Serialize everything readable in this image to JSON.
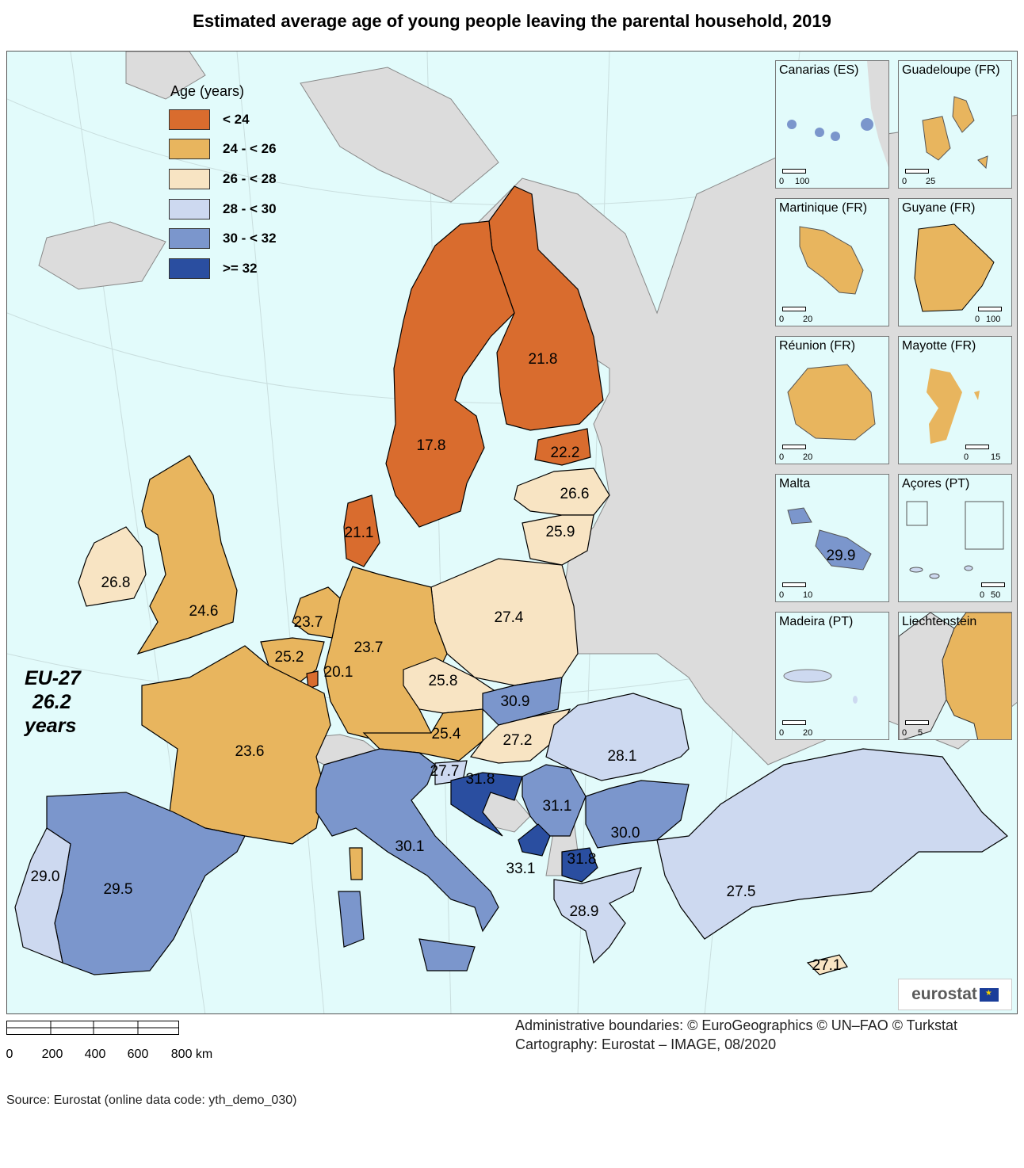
{
  "title": "Estimated average age of young people leaving the parental household, 2019",
  "legend": {
    "title": "Age (years)",
    "classes": [
      {
        "label": "< 24",
        "color": "#d96c2e"
      },
      {
        "label": "24 - < 26",
        "color": "#e8b55e"
      },
      {
        "label": "26 - < 28",
        "color": "#f8e4c3"
      },
      {
        "label": "28 - < 30",
        "color": "#cdd9f0"
      },
      {
        "label": "30 - < 32",
        "color": "#7b96cc"
      },
      {
        "label": ">= 32",
        "color": "#2a4ea0"
      }
    ]
  },
  "eu_average": {
    "line1": "EU-27",
    "line2": "26.2",
    "line3": "years"
  },
  "values": {
    "se": "17.8",
    "fi": "21.8",
    "ee": "22.2",
    "lv": "26.6",
    "lt": "25.9",
    "dk": "21.1",
    "ie": "26.8",
    "uk": "24.6",
    "nl": "23.7",
    "be": "25.2",
    "lu": "20.1",
    "de": "23.7",
    "pl": "27.4",
    "cz": "25.8",
    "sk": "30.9",
    "at": "25.4",
    "hu": "27.2",
    "si": "27.7",
    "hr": "31.8",
    "rs": "31.1",
    "ro": "28.1",
    "bg": "30.0",
    "me": "33.1",
    "mk": "31.8",
    "fr": "23.6",
    "es": "29.5",
    "pt": "29.0",
    "it": "30.1",
    "el": "28.9",
    "tr": "27.5",
    "cy": "27.1",
    "mt": "29.9"
  },
  "insets": [
    {
      "name": "Canarias (ES)",
      "scale_a": "0",
      "scale_b": "100"
    },
    {
      "name": "Guadeloupe (FR)",
      "scale_a": "0",
      "scale_b": "25"
    },
    {
      "name": "Martinique (FR)",
      "scale_a": "0",
      "scale_b": "20"
    },
    {
      "name": "Guyane (FR)",
      "scale_a": "0",
      "scale_b": "100"
    },
    {
      "name": "Réunion (FR)",
      "scale_a": "0",
      "scale_b": "20"
    },
    {
      "name": "Mayotte (FR)",
      "scale_a": "0",
      "scale_b": "15"
    },
    {
      "name": "Malta",
      "scale_a": "0",
      "scale_b": "10"
    },
    {
      "name": "Açores (PT)",
      "scale_a": "0",
      "scale_b": "50"
    },
    {
      "name": "Madeira (PT)",
      "scale_a": "0",
      "scale_b": "20"
    },
    {
      "name": "Liechtenstein",
      "scale_a": "0",
      "scale_b": "5"
    }
  ],
  "logo": "eurostat",
  "credits": {
    "line1": "Administrative boundaries: © EuroGeographics © UN–FAO © Turkstat",
    "line2": "Cartography: Eurostat – IMAGE, 08/2020"
  },
  "scalebar": [
    "0",
    "200",
    "400",
    "600",
    "800 km"
  ],
  "source": "Source: Eurostat (online data code: yth_demo_030)"
}
